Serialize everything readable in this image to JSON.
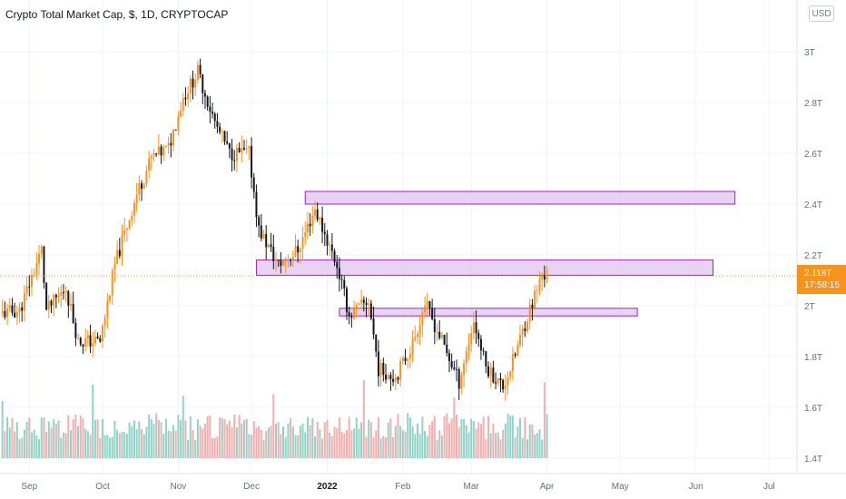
{
  "header": {
    "title": "Crypto Total Market Cap, $, 1D, CRYPTOCAP",
    "currency": "USD"
  },
  "price_label": {
    "value": "2.118T",
    "countdown": "17:58:15"
  },
  "colors": {
    "up": "#f7931a",
    "down": "#131722",
    "volume_up": "#7dcbc0",
    "volume_down": "#f0a1a1",
    "zone_fill": "#e2c4f0",
    "zone_border": "#9c27b0",
    "price_line": "#f7931a"
  },
  "chart_data": {
    "type": "candlestick",
    "title": "Crypto Total Market Cap, $, 1D, CRYPTOCAP",
    "xlabel": "",
    "ylabel": "",
    "y_unit": "T",
    "y_ticks": [
      1.4,
      1.6,
      1.8,
      2.0,
      2.2,
      2.4,
      2.6,
      2.8,
      3.0
    ],
    "y_tick_labels": [
      "1.4T",
      "1.6T",
      "1.8T",
      "2T",
      "2.2T",
      "2.4T",
      "2.6T",
      "2.8T",
      "3T"
    ],
    "x_ticks": [
      {
        "date": "2021-09-01",
        "label": "Sep"
      },
      {
        "date": "2021-10-01",
        "label": "Oct"
      },
      {
        "date": "2021-11-01",
        "label": "Nov"
      },
      {
        "date": "2021-12-01",
        "label": "Dec"
      },
      {
        "date": "2022-01-01",
        "label": "2022"
      },
      {
        "date": "2022-02-01",
        "label": "Feb"
      },
      {
        "date": "2022-03-01",
        "label": "Mar"
      },
      {
        "date": "2022-04-01",
        "label": "Apr"
      },
      {
        "date": "2022-05-01",
        "label": "May"
      },
      {
        "date": "2022-06-01",
        "label": "Jun"
      },
      {
        "date": "2022-07-01",
        "label": "Jul"
      }
    ],
    "last_price": 2.118,
    "series": [
      {
        "date": "2021-08-21",
        "close": 1.97
      },
      {
        "date": "2021-08-28",
        "close": 1.98
      },
      {
        "date": "2021-09-06",
        "close": 2.22
      },
      {
        "date": "2021-09-08",
        "close": 1.98
      },
      {
        "date": "2021-09-16",
        "close": 2.07
      },
      {
        "date": "2021-09-21",
        "close": 1.86
      },
      {
        "date": "2021-09-30",
        "close": 1.86
      },
      {
        "date": "2021-10-06",
        "close": 2.16
      },
      {
        "date": "2021-10-15",
        "close": 2.44
      },
      {
        "date": "2021-10-21",
        "close": 2.58
      },
      {
        "date": "2021-10-28",
        "close": 2.62
      },
      {
        "date": "2021-11-03",
        "close": 2.82
      },
      {
        "date": "2021-11-09",
        "close": 2.92
      },
      {
        "date": "2021-11-16",
        "close": 2.72
      },
      {
        "date": "2021-11-22",
        "close": 2.6
      },
      {
        "date": "2021-11-30",
        "close": 2.6
      },
      {
        "date": "2021-12-04",
        "close": 2.3
      },
      {
        "date": "2021-12-12",
        "close": 2.16
      },
      {
        "date": "2021-12-20",
        "close": 2.22
      },
      {
        "date": "2021-12-27",
        "close": 2.38
      },
      {
        "date": "2022-01-05",
        "close": 2.16
      },
      {
        "date": "2022-01-10",
        "close": 1.96
      },
      {
        "date": "2022-01-18",
        "close": 2.02
      },
      {
        "date": "2022-01-22",
        "close": 1.75
      },
      {
        "date": "2022-01-29",
        "close": 1.72
      },
      {
        "date": "2022-02-05",
        "close": 1.85
      },
      {
        "date": "2022-02-10",
        "close": 2.01
      },
      {
        "date": "2022-02-17",
        "close": 1.86
      },
      {
        "date": "2022-02-24",
        "close": 1.7
      },
      {
        "date": "2022-03-02",
        "close": 1.94
      },
      {
        "date": "2022-03-07",
        "close": 1.76
      },
      {
        "date": "2022-03-14",
        "close": 1.68
      },
      {
        "date": "2022-03-18",
        "close": 1.78
      },
      {
        "date": "2022-03-24",
        "close": 1.96
      },
      {
        "date": "2022-03-30",
        "close": 2.12
      },
      {
        "date": "2022-04-01",
        "close": 2.118
      }
    ],
    "zones": [
      {
        "start": "2021-12-23",
        "end": "2022-06-17",
        "low": 2.4,
        "high": 2.45
      },
      {
        "start": "2021-12-03",
        "end": "2022-06-08",
        "low": 2.12,
        "high": 2.18
      },
      {
        "start": "2022-01-06",
        "end": "2022-05-08",
        "low": 1.96,
        "high": 1.99
      }
    ]
  }
}
